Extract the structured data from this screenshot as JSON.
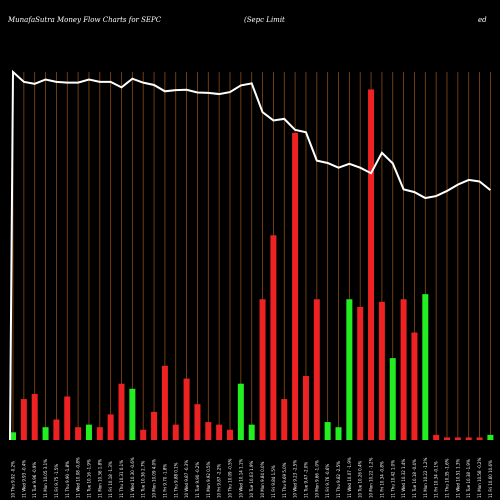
{
  "header": {
    "title_left": "MunafaSutra  Money Flow  Charts for SEPC",
    "title_mid": "(Sepc Limit",
    "title_right": "ed"
  },
  "chart_data": {
    "type": "bar",
    "title": "MunafaSutra  Money Flow  Charts for SEPC",
    "categories": [
      "Thu 10 Jul 2025",
      "Wed 09 Jul 2025",
      "Tue 08 Jul 2025",
      "Mon 07 Jul 2025",
      "Fri 04 Jul 2025",
      "Thu 03 Jul 2025",
      "Wed 02 Jul 2025",
      "Tue 01 Jul 2025",
      "Mon 30 Jun 2025",
      "Fri 27 Jun 2025",
      "Thu 26 Jun 2025",
      "Wed 25 Jun 2025",
      "Tue 24 Jun 2025",
      "Mon 23 Jun 2025",
      "Fri 20 Jun 2025",
      "Thu 19 Jun 2025",
      "Wed 18 Jun 2025",
      "Tue 17 Jun 2025",
      "Mon 16 Jun 2025",
      "Fri 13 Jun 2025",
      "Thu 12 Jun 2025",
      "Wed 11 Jun 2025",
      "Tue 10 Jun 2025",
      "Mon 09 Jun 2025",
      "Fri 06 Jun 2025",
      "Thu 05 Jun 2025",
      "Wed 04 Jun 2025",
      "Tue 03 Jun 2025",
      "Mon 02 Jun 2025",
      "Fri 30 May 2025",
      "Thu 29 May 2025",
      "Wed 28 May 2025",
      "Tue 27 May 2025",
      "Mon 26 May 2025",
      "Fri 23 May 2025",
      "Thu 22 May 2025",
      "Wed 21 May 2025",
      "Tue 20 May 2025",
      "Mon 19 May 2025",
      "Fri 16 May 2025",
      "Thu 15 May 2025",
      "Wed 14 May 2025",
      "Tue 13 May 2025",
      "Mon 12 May 2025",
      "Fri 09 May 2025"
    ],
    "tick_labels": [
      "10 Thu 9.92 -0.2%",
      "11 Wed 9.93 -0.4%",
      "11 Tue 9.96 -0.9%",
      "11 Mon 10.05 3.1%",
      "11 Fri 9.75 -1.5%",
      "11 Thu 9.90 -1.8%",
      "11 Wed 10.08 -0.8%",
      "11 Tue 10.16 -1.9%",
      "11 Mon 10.36 1.8%",
      "11 Fri 10.18 -1.3%",
      "11 Thu 10.31 0.1%",
      "11 Wed 10.30 -0.6%",
      "11 Tue 10.36 2.7%",
      "10 Mon 10.09 4.0%",
      "11 Fri 9.70 -1.8%",
      "11 Thu 9.88 0.1%",
      "10 Wed 9.87 -0.3%",
      "11 Tue 9.90 -0.2%",
      "11 Mon 9.92 0.5%",
      "10 Fri 9.87 -2.2%",
      "10 Thu 10.09 -0.5%",
      "10 Wed 10.14 1.1%",
      "10 Tue 10.03 1.9%",
      "10 Mon 9.84 0.0%",
      "11 Fri 9.84 1.5%",
      "11 Thu 9.69 5.0%",
      "10 Wed 9.23 -2.5%",
      "11 Tue 9.47 -2.0%",
      "10 Mon 9.66 -1.0%",
      "11 Fri 9.76 -0.6%",
      "11 Thu 9.82 -2.5%",
      "11 Wed 10.07 -1.9%",
      "10 Tue 10.26 0.4%",
      "10 Mon 10.22 -1.2%",
      "11 Fri 10.34 -0.8%",
      "11 Thu 10.42 1.0%",
      "11 Wed 10.32 1.4%",
      "11 Tue 10.18 -0.4%",
      "11 Mon 10.22 -1.2%",
      "11 Fri 10.34 -0.1%",
      "11 Thu 10.35 -1.6%",
      "11 Wed 10.51 1.3%",
      "11 Tue 10.38 -1.9%",
      "11 Mon 10.58 -0.2%",
      "11 Fri 10.60 10.6%"
    ],
    "series": [
      {
        "values": [
          3,
          16,
          18,
          5,
          8,
          17,
          5,
          6,
          5,
          10,
          22,
          20,
          4,
          11,
          29,
          6,
          24,
          14,
          7,
          6,
          4,
          22,
          6,
          55,
          80,
          16,
          120,
          25,
          55,
          7,
          5,
          55,
          52,
          137,
          54,
          32,
          55,
          42,
          57,
          2,
          1,
          1,
          1,
          1,
          2
        ],
        "colors": [
          "green",
          "red",
          "red",
          "green",
          "red",
          "red",
          "red",
          "green",
          "red",
          "red",
          "red",
          "green",
          "red",
          "red",
          "red",
          "red",
          "red",
          "red",
          "red",
          "red",
          "red",
          "green",
          "green",
          "red",
          "red",
          "red",
          "red",
          "red",
          "red",
          "green",
          "green",
          "green",
          "red",
          "red",
          "red",
          "green",
          "red",
          "red",
          "green",
          "red",
          "red",
          "red",
          "red",
          "red",
          "green"
        ]
      },
      {
        "type": "line",
        "values": [
          97.5,
          95.0,
          94.5,
          95.6,
          95.0,
          94.8,
          94.8,
          95.6,
          95.0,
          95.0,
          93.6,
          95.8,
          94.8,
          94.2,
          92.6,
          92.9,
          93.0,
          92.3,
          92.2,
          91.9,
          92.4,
          94.1,
          94.6,
          87.3,
          85.2,
          85.6,
          82.8,
          82.2,
          75.0,
          74.4,
          73.2,
          74.2,
          73.2,
          71.8,
          77.0,
          74.3,
          67.7,
          67.0,
          65.5,
          66.0,
          67.3,
          68.9,
          70.1,
          69.7,
          67.5
        ]
      }
    ],
    "colors": {
      "green": "#22ee22",
      "red": "#ee2222",
      "grid": "#8b4a14",
      "line": "#ffffff"
    },
    "ylim": [
      0,
      170
    ],
    "grid": true,
    "legend": "none"
  }
}
